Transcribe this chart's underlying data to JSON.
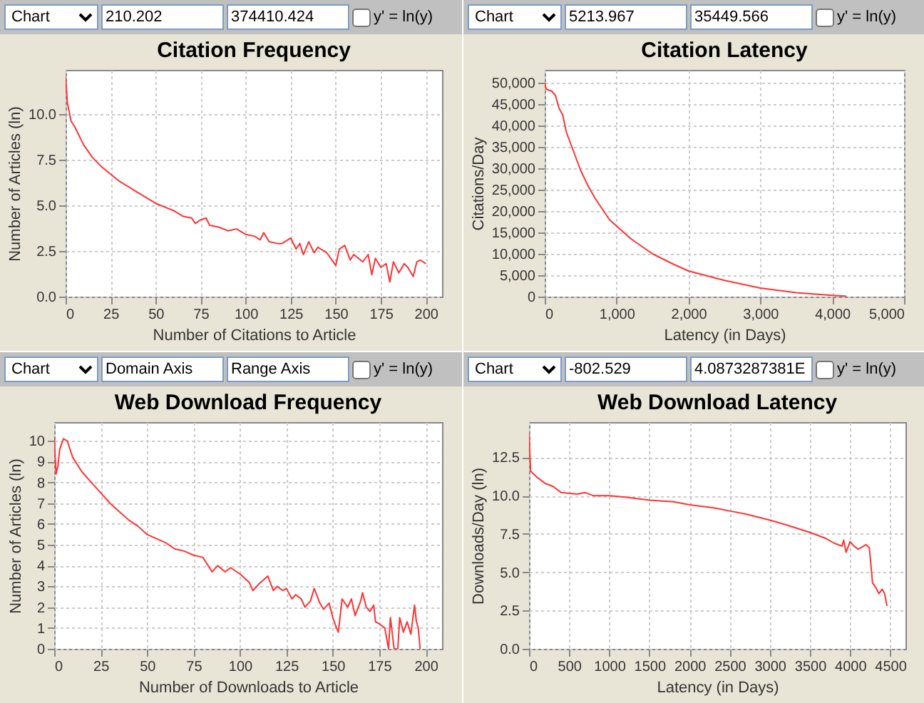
{
  "chart_data": [
    {
      "type": "line",
      "title": "Citation Frequency",
      "xlabel": "Number of Citations to Article",
      "ylabel": "Number of Articles (ln)",
      "annotations": [
        "Chart",
        "210.202",
        "374410.424",
        "y' = ln(y)"
      ],
      "x": [
        0,
        1,
        3,
        5,
        10,
        15,
        20,
        25,
        30,
        40,
        50,
        55,
        60,
        65,
        70,
        72,
        75,
        78,
        80,
        85,
        90,
        95,
        100,
        105,
        108,
        110,
        113,
        118,
        120,
        125,
        128,
        130,
        132,
        135,
        138,
        140,
        145,
        150,
        152,
        155,
        158,
        160,
        165,
        168,
        170,
        172,
        175,
        178,
        180,
        182,
        185,
        188,
        190,
        193,
        195,
        197,
        200
      ],
      "values": [
        12.0,
        10.6,
        9.6,
        9.3,
        8.3,
        7.6,
        7.1,
        6.7,
        6.3,
        5.7,
        5.1,
        4.9,
        4.7,
        4.4,
        4.3,
        4.0,
        4.2,
        4.3,
        3.9,
        3.8,
        3.6,
        3.7,
        3.4,
        3.3,
        3.1,
        3.5,
        3.0,
        2.9,
        2.9,
        3.2,
        2.6,
        2.9,
        2.3,
        3.0,
        2.4,
        2.7,
        2.4,
        1.7,
        2.6,
        2.8,
        2.0,
        2.3,
        1.9,
        2.3,
        1.2,
        2.1,
        1.6,
        1.8,
        0.8,
        1.9,
        1.3,
        1.8,
        1.6,
        1.1,
        1.9,
        2.0,
        1.8
      ],
      "color": "#ff3333",
      "xlim": [
        0,
        209
      ],
      "ylim": [
        0,
        12.4
      ],
      "xticks": [
        0,
        25,
        50,
        75,
        100,
        125,
        150,
        175,
        200
      ],
      "yticks": [
        {
          "value": 0,
          "label": "0.0"
        },
        {
          "value": 2.5,
          "label": "2.5"
        },
        {
          "value": 5,
          "label": "5.0"
        },
        {
          "value": 7.5,
          "label": "7.5"
        },
        {
          "value": 10,
          "label": "10.0"
        }
      ],
      "grid": true
    },
    {
      "type": "line",
      "title": "Citation Latency",
      "xlabel": "Latency (in Days)",
      "ylabel": "Citations/Day",
      "annotations": [
        "Chart",
        "5213.967",
        "35449.566",
        "y' = ln(y)"
      ],
      "x": [
        0,
        20,
        100,
        150,
        200,
        250,
        300,
        400,
        500,
        600,
        700,
        800,
        900,
        1000,
        1200,
        1500,
        1800,
        2000,
        2500,
        3000,
        3500,
        4000,
        4200
      ],
      "values": [
        50000,
        48500,
        48000,
        47000,
        44000,
        42500,
        38500,
        34000,
        29500,
        26000,
        23000,
        20500,
        18000,
        16500,
        13500,
        10000,
        7500,
        6000,
        3800,
        2000,
        900,
        300,
        100
      ],
      "color": "#ff3333",
      "xlim": [
        0,
        5000
      ],
      "ylim": [
        0,
        53000
      ],
      "xticks": [
        0,
        {
          "value": 1000,
          "label": "1,000"
        },
        {
          "value": 2000,
          "label": "2,000"
        },
        {
          "value": 3000,
          "label": "3,000"
        },
        {
          "value": 4000,
          "label": "4,000"
        },
        {
          "value": 5000,
          "label": "5,000"
        }
      ],
      "yticks": [
        0,
        {
          "value": 5000,
          "label": "5,000"
        },
        {
          "value": 10000,
          "label": "10,000"
        },
        {
          "value": 15000,
          "label": "15,000"
        },
        {
          "value": 20000,
          "label": "20,000"
        },
        {
          "value": 25000,
          "label": "25,000"
        },
        {
          "value": 30000,
          "label": "30,000"
        },
        {
          "value": 35000,
          "label": "35,000"
        },
        {
          "value": 40000,
          "label": "40,000"
        },
        {
          "value": 45000,
          "label": "45,000"
        },
        {
          "value": 50000,
          "label": "50,000"
        }
      ],
      "grid": true
    },
    {
      "type": "line",
      "title": "Web Download Frequency",
      "xlabel": "Number of Downloads to Article",
      "ylabel": "Number of Articles (ln)",
      "annotations": [
        "Chart",
        "Domain Axis",
        "Range Axis",
        "y' = ln(y)"
      ],
      "x": [
        0,
        1,
        2,
        3,
        5,
        7,
        10,
        15,
        20,
        25,
        30,
        35,
        40,
        45,
        50,
        55,
        60,
        65,
        70,
        75,
        80,
        85,
        88,
        92,
        95,
        100,
        105,
        107,
        110,
        115,
        118,
        120,
        123,
        125,
        128,
        130,
        133,
        135,
        138,
        140,
        143,
        145,
        148,
        150,
        152,
        153,
        155,
        158,
        160,
        162,
        165,
        166,
        168,
        170,
        172,
        173,
        175,
        178,
        180,
        181,
        183,
        185,
        186,
        188,
        190,
        192,
        194,
        195,
        196,
        197
      ],
      "values": [
        10.2,
        8.4,
        8.8,
        9.6,
        10.1,
        10.0,
        9.2,
        8.5,
        8.0,
        7.5,
        7.0,
        6.6,
        6.2,
        5.9,
        5.5,
        5.3,
        5.1,
        4.8,
        4.7,
        4.5,
        4.4,
        3.7,
        4.0,
        3.7,
        3.9,
        3.6,
        3.2,
        2.8,
        3.1,
        3.5,
        2.8,
        3.0,
        2.8,
        2.9,
        2.4,
        2.6,
        2.4,
        2.0,
        2.3,
        2.9,
        2.2,
        1.9,
        2.2,
        1.5,
        1.0,
        0.8,
        2.4,
        2.0,
        2.4,
        1.6,
        2.3,
        2.7,
        2.0,
        1.8,
        2.1,
        1.3,
        1.2,
        1.0,
        0,
        1.5,
        0,
        0,
        1.5,
        0.8,
        1.3,
        0.7,
        2.1,
        1.3,
        1.0,
        0
      ],
      "color": "#ff3333",
      "xlim": [
        0,
        208.8
      ],
      "ylim": [
        0,
        10.9
      ],
      "xticks": [
        0,
        25,
        50,
        75,
        100,
        125,
        150,
        175,
        200
      ],
      "yticks": [
        0,
        1,
        2,
        3,
        4,
        5,
        6,
        7,
        8,
        9,
        10
      ],
      "grid": true
    },
    {
      "type": "line",
      "title": "Web Download Latency",
      "xlabel": "Latency (in Days)",
      "ylabel": "Downloads/Day (ln)",
      "annotations": [
        "Chart",
        "-802.529",
        "4.0873287381E",
        "y' = ln(y)"
      ],
      "x": [
        0,
        20,
        100,
        200,
        300,
        400,
        600,
        700,
        800,
        1000,
        1200,
        1500,
        1800,
        2000,
        2300,
        2500,
        2700,
        3000,
        3200,
        3500,
        3700,
        3800,
        3900,
        3920,
        3950,
        4000,
        4050,
        4100,
        4200,
        4240,
        4280,
        4320,
        4360,
        4400,
        4430,
        4460
      ],
      "values": [
        14.0,
        11.6,
        11.2,
        10.8,
        10.6,
        10.2,
        10.1,
        10.2,
        10.0,
        10.0,
        9.9,
        9.7,
        9.6,
        9.4,
        9.2,
        9.0,
        8.8,
        8.4,
        8.1,
        7.6,
        7.2,
        6.9,
        6.7,
        7.1,
        6.3,
        7.0,
        6.7,
        6.5,
        6.8,
        6.6,
        4.3,
        4.0,
        3.6,
        3.9,
        3.6,
        2.8
      ],
      "color": "#ff3333",
      "xlim": [
        0,
        4690
      ],
      "ylim": [
        0,
        14.8
      ],
      "xticks": [
        0,
        500,
        1000,
        1500,
        2000,
        2500,
        3000,
        3500,
        4000,
        4500
      ],
      "yticks": [
        {
          "value": 0,
          "label": "0.0"
        },
        {
          "value": 2.5,
          "label": "2.5"
        },
        {
          "value": 5,
          "label": "5.0"
        },
        {
          "value": 7.5,
          "label": "7.5"
        },
        {
          "value": 10,
          "label": "10.0"
        },
        {
          "value": 12.5,
          "label": "12.5"
        }
      ],
      "grid": true
    }
  ]
}
